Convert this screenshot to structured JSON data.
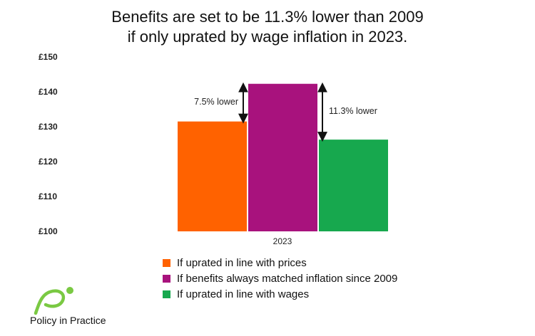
{
  "chart_data": {
    "type": "bar",
    "title": "Benefits are set to be 11.3% lower than 2009",
    "subtitle": "if only uprated by wage inflation in 2023.",
    "categories": [
      "2023"
    ],
    "series": [
      {
        "name": "If uprated in line with prices",
        "color": "#ff6200",
        "values": [
          131.5
        ]
      },
      {
        "name": "If benefits always matched inflation since 2009",
        "color": "#a8127d",
        "values": [
          142.3
        ]
      },
      {
        "name": "If uprated in line with wages",
        "color": "#17a84e",
        "values": [
          126.3
        ]
      }
    ],
    "ylim": [
      100,
      150
    ],
    "yticks": [
      "£100",
      "£110",
      "£120",
      "£130",
      "£140",
      "£150"
    ],
    "annotations": [
      {
        "text": "7.5% lower",
        "from_series": 1,
        "to_series": 0
      },
      {
        "text": "11.3% lower",
        "from_series": 1,
        "to_series": 2
      }
    ],
    "grid": false,
    "legend_position": "bottom"
  },
  "logo": {
    "text": "Policy in Practice",
    "color": "#7ac943"
  }
}
